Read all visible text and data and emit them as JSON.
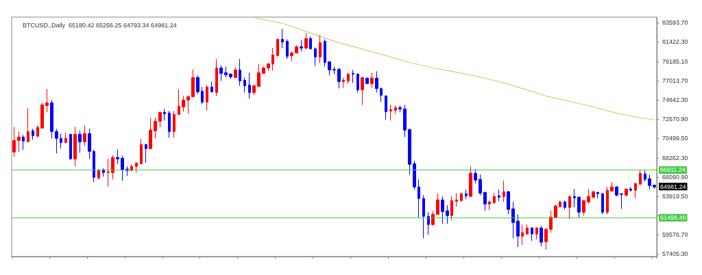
{
  "chart_data": {
    "type": "candlestick",
    "title": "BTCUSD.,Daily  65180.42 65256.25 64793.34 64981.24",
    "categories": [
      null,
      null,
      null,
      null,
      null,
      null,
      null,
      null,
      null,
      null,
      null,
      null,
      null,
      null,
      null,
      null,
      null,
      null,
      null,
      null,
      null,
      null,
      null,
      null,
      null,
      null,
      null,
      null,
      null,
      null,
      null,
      null,
      null,
      null,
      null,
      null,
      null,
      null,
      null,
      null,
      null,
      null,
      null,
      null,
      null,
      null,
      null,
      null,
      null,
      null,
      null,
      null,
      null,
      null,
      null,
      null,
      null,
      null,
      null,
      null,
      null,
      null,
      null,
      null,
      null,
      null,
      null,
      null,
      null,
      null,
      null,
      null,
      null,
      null,
      null,
      null,
      null,
      null,
      null,
      null,
      null,
      null,
      null,
      null,
      null,
      null,
      null,
      null,
      null,
      null,
      null,
      null,
      null,
      null,
      null,
      null,
      null,
      null,
      null,
      null,
      null,
      null,
      null,
      null,
      null,
      null,
      null,
      null,
      null,
      null,
      null,
      null,
      null,
      null,
      null,
      null,
      null,
      null,
      null,
      null,
      null,
      null,
      null,
      null,
      null,
      null,
      null,
      null,
      null,
      null,
      null,
      null,
      null,
      null,
      null,
      null,
      null
    ],
    "ohlc": [
      [
        68950,
        71810,
        68400,
        70260
      ],
      [
        70260,
        71270,
        68950,
        70650
      ],
      [
        70650,
        70880,
        69180,
        70190
      ],
      [
        70110,
        73910,
        70030,
        71270
      ],
      [
        71350,
        71580,
        70340,
        70810
      ],
      [
        70730,
        71970,
        70650,
        71740
      ],
      [
        71660,
        74530,
        71660,
        74290
      ],
      [
        74220,
        76080,
        73440,
        74530
      ],
      [
        74530,
        74840,
        70500,
        71270
      ],
      [
        71270,
        71580,
        68790,
        70500
      ],
      [
        70500,
        71040,
        69330,
        70030
      ],
      [
        70030,
        71120,
        70030,
        70500
      ],
      [
        70960,
        70960,
        68090,
        68170
      ],
      [
        68170,
        71810,
        67320,
        70960
      ],
      [
        70960,
        71350,
        68870,
        70110
      ],
      [
        70110,
        71970,
        69640,
        71040
      ],
      [
        71040,
        71580,
        68170,
        69020
      ],
      [
        69020,
        69180,
        65540,
        66080
      ],
      [
        66000,
        67010,
        65850,
        66850
      ],
      [
        66930,
        67090,
        66160,
        66620
      ],
      [
        66620,
        68170,
        64990,
        66700
      ],
      [
        66620,
        68560,
        65850,
        68330
      ],
      [
        68330,
        69260,
        67550,
        68170
      ],
      [
        68250,
        68560,
        65690,
        66930
      ],
      [
        67010,
        67320,
        66230,
        66850
      ],
      [
        66850,
        67550,
        66780,
        67320
      ],
      [
        67320,
        67780,
        66620,
        67710
      ],
      [
        67630,
        70420,
        67550,
        69800
      ],
      [
        69800,
        69880,
        67710,
        69330
      ],
      [
        69330,
        72820,
        69260,
        71430
      ],
      [
        71350,
        72820,
        70500,
        72430
      ],
      [
        72430,
        73520,
        71740,
        73440
      ],
      [
        73440,
        73830,
        72510,
        73290
      ],
      [
        73360,
        73600,
        70570,
        71270
      ],
      [
        71270,
        73600,
        70570,
        73210
      ],
      [
        73210,
        76080,
        73130,
        74140
      ],
      [
        74060,
        75300,
        73520,
        74840
      ],
      [
        74840,
        75380,
        73290,
        75220
      ],
      [
        75220,
        78320,
        75150,
        77390
      ],
      [
        77390,
        77630,
        75530,
        75770
      ],
      [
        75840,
        76310,
        74370,
        74600
      ],
      [
        74600,
        76540,
        73670,
        76310
      ],
      [
        76310,
        76930,
        75690,
        75770
      ],
      [
        75690,
        79490,
        75300,
        78480
      ],
      [
        78480,
        78790,
        77010,
        77860
      ],
      [
        77940,
        78630,
        77390,
        77700
      ],
      [
        77780,
        77860,
        77240,
        77470
      ],
      [
        77390,
        78560,
        77390,
        78250
      ],
      [
        78250,
        79490,
        76460,
        77010
      ],
      [
        77080,
        77390,
        75690,
        76460
      ],
      [
        76540,
        77940,
        74990,
        75690
      ],
      [
        75690,
        76540,
        75380,
        76460
      ],
      [
        76390,
        78940,
        76310,
        77940
      ],
      [
        77860,
        78630,
        77860,
        78480
      ],
      [
        78480,
        79020,
        78170,
        78940
      ],
      [
        78940,
        80730,
        78170,
        79950
      ],
      [
        79870,
        81730,
        79800,
        81730
      ],
      [
        81730,
        82900,
        80730,
        81420
      ],
      [
        81500,
        81730,
        79490,
        79800
      ],
      [
        79870,
        80340,
        79250,
        80180
      ],
      [
        80180,
        81040,
        80110,
        80880
      ],
      [
        80880,
        81660,
        80340,
        80730
      ],
      [
        80730,
        82430,
        80570,
        81810
      ],
      [
        81810,
        82040,
        80570,
        80650
      ],
      [
        80650,
        80800,
        78710,
        79720
      ],
      [
        79720,
        82200,
        79020,
        81350
      ],
      [
        81500,
        81730,
        78630,
        79100
      ],
      [
        79180,
        79250,
        77630,
        78250
      ],
      [
        78250,
        78630,
        77780,
        78320
      ],
      [
        78320,
        78480,
        76150,
        76930
      ],
      [
        76930,
        77390,
        76230,
        77080
      ],
      [
        77010,
        77940,
        76700,
        77780
      ],
      [
        77860,
        78250,
        76770,
        77780
      ],
      [
        77780,
        77860,
        75690,
        76000
      ],
      [
        76000,
        77390,
        74290,
        77390
      ],
      [
        77320,
        77390,
        76700,
        76700
      ],
      [
        76700,
        77940,
        76230,
        77320
      ],
      [
        77320,
        78090,
        75690,
        76150
      ],
      [
        76150,
        76230,
        74600,
        75380
      ],
      [
        75300,
        75380,
        72590,
        73520
      ],
      [
        73600,
        74290,
        72510,
        73750
      ],
      [
        73670,
        74220,
        73290,
        73980
      ],
      [
        73980,
        74220,
        73440,
        73830
      ],
      [
        73830,
        74290,
        70650,
        71430
      ],
      [
        71500,
        71580,
        66390,
        67550
      ],
      [
        67630,
        67940,
        64680,
        64990
      ],
      [
        64990,
        65850,
        61510,
        63680
      ],
      [
        63680,
        64060,
        59180,
        61660
      ],
      [
        61660,
        62130,
        59570,
        60730
      ],
      [
        60730,
        62280,
        60580,
        61890
      ],
      [
        61890,
        64220,
        61820,
        63520
      ],
      [
        63520,
        63910,
        60810,
        62200
      ],
      [
        62280,
        62900,
        60810,
        61740
      ],
      [
        61740,
        63990,
        61200,
        63440
      ],
      [
        63370,
        64300,
        62750,
        63520
      ],
      [
        63440,
        64370,
        63290,
        64220
      ],
      [
        64220,
        64680,
        63600,
        63990
      ],
      [
        63910,
        67320,
        63910,
        66540
      ],
      [
        66540,
        67010,
        65380,
        65770
      ],
      [
        65850,
        66390,
        64060,
        64300
      ],
      [
        64370,
        64450,
        62280,
        63060
      ],
      [
        63060,
        63440,
        62360,
        63290
      ],
      [
        63210,
        64300,
        63060,
        63910
      ],
      [
        63990,
        64680,
        63370,
        63830
      ],
      [
        63910,
        65690,
        63290,
        64450
      ],
      [
        64450,
        64530,
        61890,
        62440
      ],
      [
        62510,
        63290,
        59180,
        60960
      ],
      [
        61120,
        61890,
        58170,
        59410
      ],
      [
        59410,
        60730,
        58410,
        59800
      ],
      [
        59650,
        60730,
        59570,
        60340
      ],
      [
        60340,
        60420,
        58870,
        59650
      ],
      [
        59650,
        60420,
        59030,
        60340
      ],
      [
        60340,
        60580,
        58250,
        58720
      ],
      [
        58790,
        60340,
        57860,
        60190
      ],
      [
        60190,
        62280,
        59800,
        61580
      ],
      [
        61510,
        62980,
        61510,
        62820
      ],
      [
        62750,
        63440,
        62670,
        63290
      ],
      [
        63290,
        63440,
        62440,
        62670
      ],
      [
        62670,
        63990,
        61350,
        63910
      ],
      [
        63910,
        64760,
        62670,
        63750
      ],
      [
        63830,
        63910,
        61510,
        62130
      ],
      [
        62130,
        63520,
        61740,
        63440
      ],
      [
        63290,
        64760,
        63130,
        63910
      ],
      [
        63830,
        64530,
        63680,
        64450
      ],
      [
        64370,
        64450,
        63680,
        64220
      ],
      [
        64220,
        64300,
        61890,
        62130
      ],
      [
        62130,
        64990,
        61890,
        64610
      ],
      [
        64530,
        65540,
        64450,
        64990
      ],
      [
        64990,
        65070,
        63910,
        64060
      ],
      [
        64220,
        64220,
        62510,
        64140
      ],
      [
        64060,
        64760,
        63910,
        64760
      ],
      [
        64760,
        64990,
        64450,
        64610
      ],
      [
        64610,
        65460,
        63750,
        65380
      ],
      [
        65300,
        66930,
        65230,
        66540
      ],
      [
        66470,
        66850,
        65610,
        65850
      ],
      [
        65920,
        66390,
        64680,
        65150
      ],
      [
        65180.42,
        65256.25,
        64793.34,
        64981.24
      ]
    ],
    "colors": [
      "#ff0000",
      "#ff0000",
      "#0000ff",
      "#ff0000",
      "#0000ff",
      "#ff0000",
      "#ff0000",
      "#ff0000",
      "#0000ff",
      "#0000ff",
      "#0000ff",
      "#ff0000",
      "#0000ff",
      "#ff0000",
      "#0000ff",
      "#ff0000",
      "#0000ff",
      "#0000ff",
      "#ff0000",
      "#0000ff",
      "#ff0000",
      "#ff0000",
      "#0000ff",
      "#0000ff",
      "#0000ff",
      "#ff0000",
      "#ff0000",
      "#ff0000",
      "#0000ff",
      "#ff0000",
      "#ff0000",
      "#ff0000",
      "#0000ff",
      "#0000ff",
      "#ff0000",
      "#ff0000",
      "#ff0000",
      "#ff0000",
      "#ff0000",
      "#0000ff",
      "#0000ff",
      "#ff0000",
      "#0000ff",
      "#ff0000",
      "#0000ff",
      "#0000ff",
      "#0000ff",
      "#ff0000",
      "#0000ff",
      "#0000ff",
      "#0000ff",
      "#ff0000",
      "#ff0000",
      "#ff0000",
      "#ff0000",
      "#ff0000",
      "#ff0000",
      "#0000ff",
      "#0000ff",
      "#ff0000",
      "#ff0000",
      "#0000ff",
      "#ff0000",
      "#0000ff",
      "#0000ff",
      "#ff0000",
      "#0000ff",
      "#0000ff",
      "#0000ff",
      "#0000ff",
      "#ff0000",
      "#ff0000",
      "#0000ff",
      "#0000ff",
      "#ff0000",
      "#0000ff",
      "#ff0000",
      "#0000ff",
      "#0000ff",
      "#0000ff",
      "#ff0000",
      "#ff0000",
      "#0000ff",
      "#0000ff",
      "#0000ff",
      "#0000ff",
      "#0000ff",
      "#0000ff",
      "#0000ff",
      "#ff0000",
      "#ff0000",
      "#0000ff",
      "#0000ff",
      "#ff0000",
      "#ff0000",
      "#ff0000",
      "#0000ff",
      "#ff0000",
      "#0000ff",
      "#0000ff",
      "#0000ff",
      "#ff0000",
      "#ff0000",
      "#0000ff",
      "#ff0000",
      "#0000ff",
      "#0000ff",
      "#0000ff",
      "#ff0000",
      "#ff0000",
      "#0000ff",
      "#ff0000",
      "#0000ff",
      "#ff0000",
      "#ff0000",
      "#ff0000",
      "#ff0000",
      "#0000ff",
      "#ff0000",
      "#0000ff",
      "#0000ff",
      "#ff0000",
      "#ff0000",
      "#ff0000",
      "#0000ff",
      "#0000ff",
      "#ff0000",
      "#ff0000",
      "#0000ff",
      "#0000ff",
      "#ff0000",
      "#0000ff",
      "#ff0000",
      "#ff0000",
      "#0000ff",
      "#0000ff",
      "#0000ff"
    ],
    "series": [
      {
        "type": "line",
        "color": "#e8c36a",
        "values": [
          null,
          null,
          null,
          null,
          null,
          null,
          null,
          null,
          null,
          null,
          null,
          null,
          null,
          null,
          null,
          null,
          null,
          null,
          null,
          null,
          null,
          null,
          null,
          null,
          null,
          null,
          null,
          null,
          null,
          null,
          null,
          null,
          null,
          null,
          null,
          null,
          null,
          null,
          null,
          null,
          null,
          null,
          null,
          null,
          null,
          null,
          null,
          null,
          null,
          null,
          null,
          84170,
          null,
          null,
          null,
          null,
          null,
          83520,
          null,
          null,
          null,
          82820,
          null,
          null,
          null,
          82040,
          null,
          null,
          null,
          81345,
          null,
          null,
          null,
          80760,
          null,
          null,
          null,
          null,
          null,
          79870,
          null,
          null,
          null,
          null,
          79100,
          null,
          null,
          null,
          null,
          78480,
          null,
          null,
          null,
          78090,
          null,
          null,
          null,
          null,
          77550,
          null,
          null,
          null,
          null,
          76930,
          null,
          null,
          null,
          null,
          76150,
          null,
          null,
          null,
          null,
          75300,
          null,
          null,
          null,
          null,
          74680,
          null,
          null,
          null,
          null,
          74060,
          null,
          null,
          null,
          null,
          73360,
          null,
          null,
          null,
          null,
          72820,
          null,
          null,
          72590
        ]
      }
    ],
    "ylim": [
      57100,
      84240
    ],
    "yticks": [
      {
        "value": 57405.3,
        "label": "57405.30"
      },
      {
        "value": 59576.7,
        "label": "59576.70"
      },
      {
        "value": 61748.1,
        "label": null
      },
      {
        "value": 63919.5,
        "label": "63919.50"
      },
      {
        "value": 66090.9,
        "label": "66090.90"
      },
      {
        "value": 68262.3,
        "label": "68262.30"
      },
      {
        "value": 70499.5,
        "label": "70499.50"
      },
      {
        "value": 72670.9,
        "label": "72670.90"
      },
      {
        "value": 74842.3,
        "label": "74842.30"
      },
      {
        "value": 77013.7,
        "label": "77013.70"
      },
      {
        "value": 79185.1,
        "label": "79185.10"
      },
      {
        "value": 81422.3,
        "label": "81422.30"
      },
      {
        "value": 83593.7,
        "label": "83593.70"
      }
    ],
    "ref_lines": [
      {
        "axis": "y",
        "value": 66911.24,
        "label": "66911.24",
        "color": "#44cc44"
      },
      {
        "axis": "y",
        "value": 61498.49,
        "label": "61498.49",
        "color": "#44cc44"
      }
    ],
    "annotations": [
      "64981.24"
    ],
    "tick_labels": "y"
  }
}
